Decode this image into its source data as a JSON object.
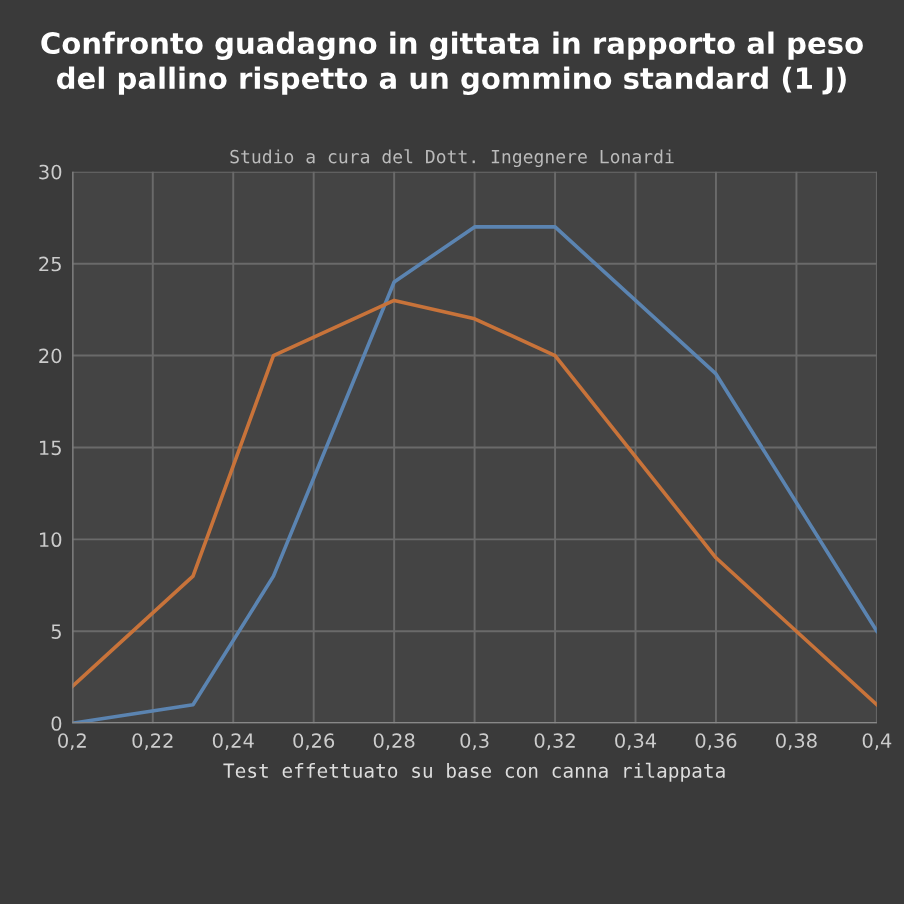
{
  "chart_data": {
    "type": "line",
    "title": "Confronto guadagno in gittata in rapporto al peso\ndel pallino rispetto a un gommino standard (1 J)",
    "subtitle": "Studio a cura del Dott. Ingegnere Lonardi",
    "xlabel": "Test effettuato su base con canna rilappata",
    "series": [
      {
        "color": "#5b84b1",
        "x": [
          0.2,
          0.23,
          0.25,
          0.28,
          0.3,
          0.32,
          0.36,
          0.4
        ],
        "values": [
          0,
          1,
          8,
          24,
          27,
          27,
          19,
          5
        ]
      },
      {
        "color": "#c8733a",
        "x": [
          0.2,
          0.23,
          0.25,
          0.28,
          0.3,
          0.32,
          0.36,
          0.4
        ],
        "values": [
          2,
          8,
          20,
          23,
          22,
          20,
          9,
          1
        ]
      }
    ],
    "xlim": [
      0.2,
      0.4
    ],
    "xticks": [
      {
        "value": 0.2,
        "label": "0,2"
      },
      {
        "value": 0.22,
        "label": "0,22"
      },
      {
        "value": 0.24,
        "label": "0,24"
      },
      {
        "value": 0.26,
        "label": "0,26"
      },
      {
        "value": 0.28,
        "label": "0,28"
      },
      {
        "value": 0.3,
        "label": "0,3"
      },
      {
        "value": 0.32,
        "label": "0,32"
      },
      {
        "value": 0.34,
        "label": "0,34"
      },
      {
        "value": 0.36,
        "label": "0,36"
      },
      {
        "value": 0.38,
        "label": "0,38"
      },
      {
        "value": 0.4,
        "label": "0,4"
      }
    ],
    "ylim": [
      0,
      30
    ],
    "yticks": [
      0,
      5,
      10,
      15,
      20,
      25,
      30
    ],
    "grid": true,
    "marker": "none",
    "line_style": "solid"
  }
}
